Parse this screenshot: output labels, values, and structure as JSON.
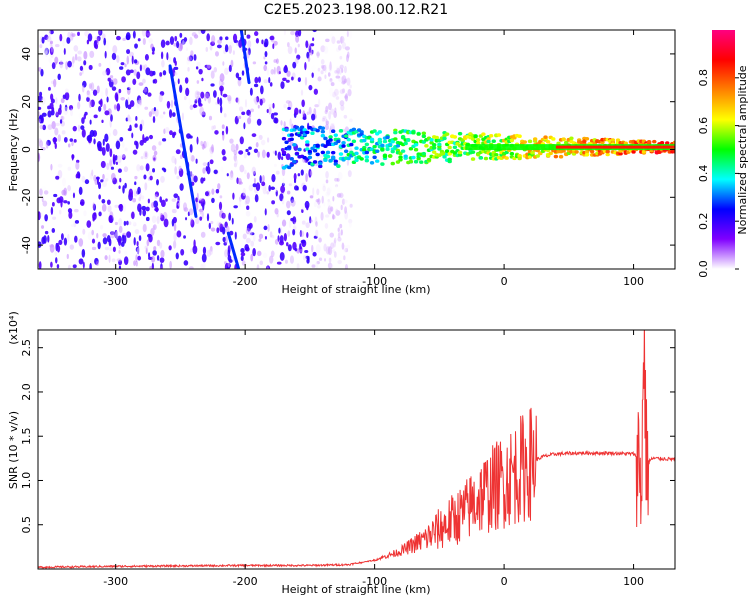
{
  "title": "C2E5.2023.198.00.12.R21",
  "chart_data": [
    {
      "type": "heatmap",
      "title": "",
      "xlabel": "Height of straight line (km)",
      "ylabel": "Frequency (Hz)",
      "xlim": [
        -360,
        132
      ],
      "ylim": [
        -50,
        50
      ],
      "xticks": [
        -300,
        -200,
        -100,
        0,
        100
      ],
      "yticks": [
        -40,
        -20,
        0,
        20,
        40
      ],
      "colorbar": {
        "label": "Normalized spectral amplitude",
        "range": [
          0,
          1
        ],
        "ticks": [
          "0.0",
          "0.2",
          "0.4",
          "0.6",
          "0.8"
        ],
        "tick_values": [
          0,
          0.2,
          0.4,
          0.6,
          0.8
        ],
        "colors": [
          "#ffffff",
          "#8000ff",
          "#0000ff",
          "#00ffff",
          "#00ff00",
          "#ffff00",
          "#ff8000",
          "#ff0000",
          "#ff0080"
        ]
      },
      "features": {
        "noise_region_x": [
          -360,
          -130
        ],
        "carrier_line": {
          "x_start": -170,
          "x_end": 132,
          "frequency_hz": 1,
          "peak_amplitude": 0.85
        },
        "streaks": [
          {
            "x_start": -258,
            "f_start": 35,
            "x_end": -238,
            "f_end": -28
          },
          {
            "x_start": -203,
            "f_start": 50,
            "x_end": -197,
            "f_end": 28
          },
          {
            "x_start": -213,
            "f_start": -35,
            "x_end": -205,
            "f_end": -50
          }
        ]
      }
    },
    {
      "type": "line",
      "title": "",
      "xlabel": "Height of straight line (km)",
      "ylabel": "SNR (10 * v/v)",
      "scale_label": "(x10⁴)",
      "scale_exponent": 4,
      "xlim": [
        -360,
        132
      ],
      "ylim": [
        0,
        2.7
      ],
      "xticks": [
        -300,
        -200,
        -100,
        0,
        100
      ],
      "yticks": [
        0.5,
        1.0,
        1.5,
        2.0,
        2.5
      ],
      "ytick_labels": [
        "0.5",
        "1.0",
        "1.5",
        "2.0",
        "2.5"
      ],
      "line_color": "#ee3333",
      "series": [
        {
          "name": "",
          "x": [
            -360,
            -300,
            -200,
            -150,
            -120,
            -100,
            -80,
            -60,
            -50,
            -40,
            -30,
            -20,
            -10,
            0,
            10,
            20,
            30,
            40,
            60,
            80,
            100,
            104,
            106,
            108,
            110,
            115,
            132
          ],
          "y": [
            0.02,
            0.03,
            0.04,
            0.04,
            0.05,
            0.1,
            0.2,
            0.35,
            0.45,
            0.55,
            0.65,
            0.8,
            0.9,
            1.0,
            1.1,
            1.2,
            1.27,
            1.3,
            1.31,
            1.31,
            1.3,
            1.25,
            0.9,
            2.6,
            1.2,
            1.25,
            1.24
          ]
        }
      ]
    }
  ]
}
